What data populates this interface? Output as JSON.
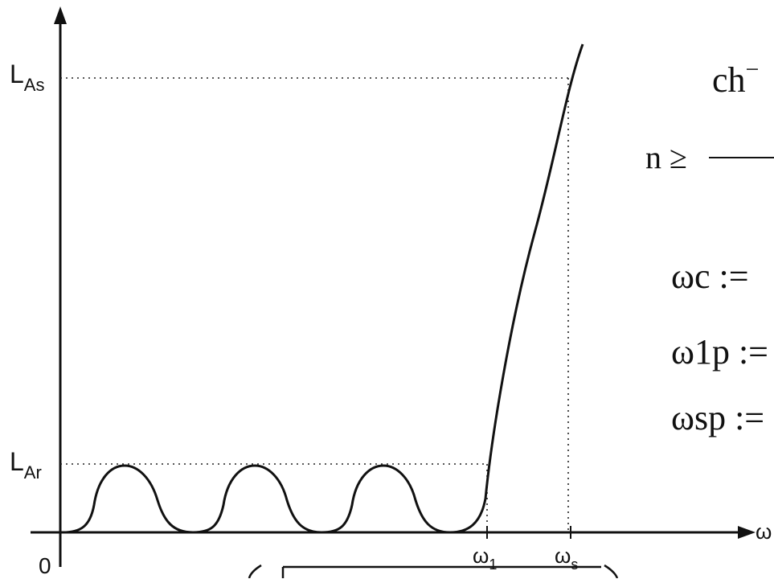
{
  "diagram": {
    "y_labels": {
      "las_main": "L",
      "las_sub": "As",
      "lar_main": "L",
      "lar_sub": "Ar",
      "origin": "0"
    },
    "x_labels": {
      "w1_main": "ω",
      "w1_sub": "1",
      "ws_main": "ω",
      "ws_sub": "s",
      "axis": "ω"
    },
    "formulas": {
      "ch_inv": "ch",
      "ch_sup": "−",
      "n_ge": "n ≥",
      "wc": "ωc :=",
      "w1p": "ω1p :=",
      "wsp": "ωsp :="
    }
  }
}
